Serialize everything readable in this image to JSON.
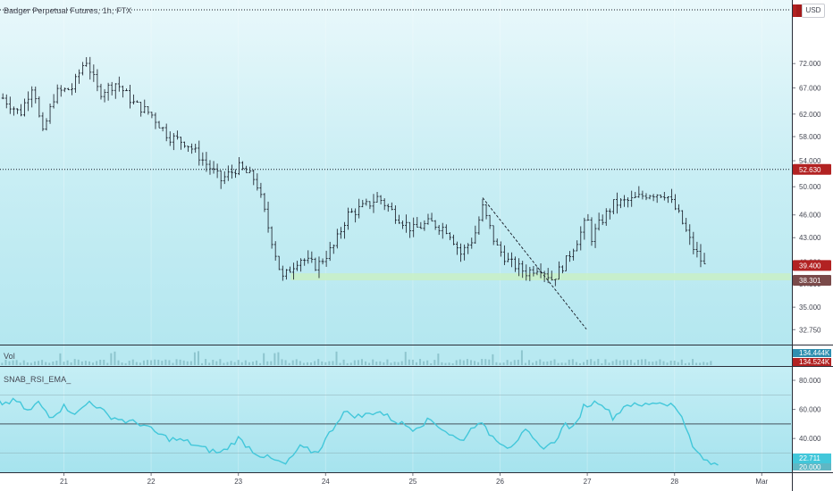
{
  "header": {
    "symbol_title": "Badger Perpetual Futures, 1h, FTX",
    "currency": "USD"
  },
  "volume_pane": {
    "title": "Vol",
    "labels": [
      "134.444K",
      "134.524K"
    ]
  },
  "rsi_pane": {
    "title": "SNAB_RSI_EMA_",
    "value_label": "22.711",
    "value_label_2": "20.000"
  },
  "colors": {
    "candle": "#131722",
    "rsi_line": "#42c7da",
    "trendline": "#131722",
    "level_line": "#131722",
    "support_zone": "#c8f0c8",
    "price_tag_red": "#b22222",
    "price_tag_brown": "#7a4a4a",
    "rsi_tag": "#42c7da"
  },
  "chart_data": [
    {
      "type": "ohlc",
      "title": "Badger Perpetual Futures, 1h, FTX",
      "x_ticks": [
        "21",
        "22",
        "23",
        "24",
        "25",
        "26",
        "27",
        "28",
        "Mar"
      ],
      "y_ticks": [
        72.0,
        67.0,
        62.0,
        58.0,
        54.0,
        50.0,
        46.0,
        43.0,
        40.0,
        37.5,
        35.0,
        32.75
      ],
      "y_tick_labels": [
        "72.000",
        "67.000",
        "62.000",
        "58.000",
        "54.000",
        "50.000",
        "46.000",
        "43.000",
        "40.000",
        "37.500",
        "35.000",
        "32.750"
      ],
      "y_scale": "log",
      "ylim": [
        31.5,
        82.0
      ],
      "horizontal_levels": [
        {
          "value": 52.63,
          "label": "52.630"
        },
        {
          "value": 81.0,
          "label": ""
        }
      ],
      "current_price": {
        "value": 39.4,
        "label": "39.400"
      },
      "secondary_price": {
        "value": 38.301,
        "label": "38.301"
      },
      "support_zone": [
        37.9,
        38.7
      ],
      "trendline": {
        "start": {
          "day": 25.8,
          "price": 48.4
        },
        "end": {
          "day": 26.99,
          "price": 32.8
        }
      },
      "price_path": [
        {
          "day": 20.3,
          "price": 65.0
        },
        {
          "day": 20.5,
          "price": 62.0
        },
        {
          "day": 20.65,
          "price": 68.0
        },
        {
          "day": 20.75,
          "price": 58.0
        },
        {
          "day": 20.9,
          "price": 66.0
        },
        {
          "day": 21.1,
          "price": 67.0
        },
        {
          "day": 21.25,
          "price": 73.0
        },
        {
          "day": 21.4,
          "price": 66.0
        },
        {
          "day": 21.6,
          "price": 68.0
        },
        {
          "day": 21.8,
          "price": 64.0
        },
        {
          "day": 22.0,
          "price": 62.0
        },
        {
          "day": 22.2,
          "price": 58.0
        },
        {
          "day": 22.4,
          "price": 57.0
        },
        {
          "day": 22.6,
          "price": 54.0
        },
        {
          "day": 22.8,
          "price": 51.0
        },
        {
          "day": 23.0,
          "price": 53.0
        },
        {
          "day": 23.2,
          "price": 51.0
        },
        {
          "day": 23.35,
          "price": 44.0
        },
        {
          "day": 23.5,
          "price": 38.0
        },
        {
          "day": 23.7,
          "price": 40.5
        },
        {
          "day": 23.9,
          "price": 39.5
        },
        {
          "day": 24.1,
          "price": 42.0
        },
        {
          "day": 24.25,
          "price": 46.0
        },
        {
          "day": 24.5,
          "price": 47.5
        },
        {
          "day": 24.6,
          "price": 48.5
        },
        {
          "day": 24.8,
          "price": 46.0
        },
        {
          "day": 25.0,
          "price": 44.0
        },
        {
          "day": 25.2,
          "price": 45.0
        },
        {
          "day": 25.4,
          "price": 44.0
        },
        {
          "day": 25.55,
          "price": 41.0
        },
        {
          "day": 25.7,
          "price": 43.0
        },
        {
          "day": 25.8,
          "price": 47.0
        },
        {
          "day": 25.95,
          "price": 42.0
        },
        {
          "day": 26.1,
          "price": 40.0
        },
        {
          "day": 26.3,
          "price": 38.8
        },
        {
          "day": 26.45,
          "price": 39.5
        },
        {
          "day": 26.6,
          "price": 38.0
        },
        {
          "day": 26.75,
          "price": 40.0
        },
        {
          "day": 26.9,
          "price": 43.0
        },
        {
          "day": 27.0,
          "price": 45.5
        },
        {
          "day": 27.05,
          "price": 43.0
        },
        {
          "day": 27.15,
          "price": 45.0
        },
        {
          "day": 27.3,
          "price": 47.5
        },
        {
          "day": 27.5,
          "price": 48.0
        },
        {
          "day": 27.7,
          "price": 49.0
        },
        {
          "day": 27.9,
          "price": 49.0
        },
        {
          "day": 28.05,
          "price": 46.0
        },
        {
          "day": 28.2,
          "price": 42.0
        },
        {
          "day": 28.35,
          "price": 39.4
        }
      ]
    },
    {
      "type": "line",
      "title": "SNAB_RSI_EMA_",
      "y_ticks": [
        80.0,
        60.0,
        40.0
      ],
      "y_tick_labels": [
        "80.000",
        "60.000",
        "40.000"
      ],
      "ylim": [
        18,
        88
      ],
      "reference_lines": [
        70,
        50,
        30
      ],
      "points": [
        {
          "day": 20.0,
          "value": 75
        },
        {
          "day": 20.15,
          "value": 68
        },
        {
          "day": 20.3,
          "value": 64
        },
        {
          "day": 20.45,
          "value": 66
        },
        {
          "day": 20.6,
          "value": 58
        },
        {
          "day": 20.7,
          "value": 65
        },
        {
          "day": 20.85,
          "value": 55
        },
        {
          "day": 21.0,
          "value": 62
        },
        {
          "day": 21.15,
          "value": 57
        },
        {
          "day": 21.3,
          "value": 66
        },
        {
          "day": 21.5,
          "value": 56
        },
        {
          "day": 21.7,
          "value": 52
        },
        {
          "day": 21.9,
          "value": 50
        },
        {
          "day": 22.05,
          "value": 44
        },
        {
          "day": 22.2,
          "value": 40
        },
        {
          "day": 22.4,
          "value": 38
        },
        {
          "day": 22.6,
          "value": 33
        },
        {
          "day": 22.8,
          "value": 30
        },
        {
          "day": 23.0,
          "value": 40
        },
        {
          "day": 23.2,
          "value": 30
        },
        {
          "day": 23.45,
          "value": 24
        },
        {
          "day": 23.55,
          "value": 22
        },
        {
          "day": 23.7,
          "value": 34
        },
        {
          "day": 23.9,
          "value": 30
        },
        {
          "day": 24.05,
          "value": 44
        },
        {
          "day": 24.2,
          "value": 58
        },
        {
          "day": 24.4,
          "value": 55
        },
        {
          "day": 24.6,
          "value": 59
        },
        {
          "day": 24.8,
          "value": 52
        },
        {
          "day": 25.0,
          "value": 47
        },
        {
          "day": 25.2,
          "value": 53
        },
        {
          "day": 25.4,
          "value": 44
        },
        {
          "day": 25.55,
          "value": 38
        },
        {
          "day": 25.75,
          "value": 52
        },
        {
          "day": 25.9,
          "value": 42
        },
        {
          "day": 26.1,
          "value": 34
        },
        {
          "day": 26.3,
          "value": 45
        },
        {
          "day": 26.45,
          "value": 34
        },
        {
          "day": 26.6,
          "value": 36
        },
        {
          "day": 26.75,
          "value": 50
        },
        {
          "day": 26.85,
          "value": 46
        },
        {
          "day": 26.95,
          "value": 62
        },
        {
          "day": 27.15,
          "value": 66
        },
        {
          "day": 27.3,
          "value": 54
        },
        {
          "day": 27.45,
          "value": 64
        },
        {
          "day": 27.6,
          "value": 62
        },
        {
          "day": 27.75,
          "value": 65
        },
        {
          "day": 27.95,
          "value": 64
        },
        {
          "day": 28.1,
          "value": 55
        },
        {
          "day": 28.2,
          "value": 34
        },
        {
          "day": 28.3,
          "value": 28
        },
        {
          "day": 28.38,
          "value": 23
        },
        {
          "day": 28.5,
          "value": 22
        }
      ]
    }
  ]
}
